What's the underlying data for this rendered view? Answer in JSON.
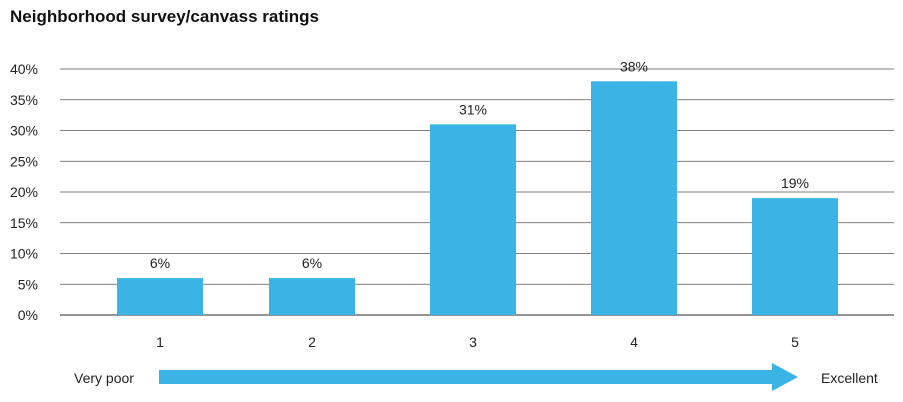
{
  "chart_data": {
    "type": "bar",
    "title": "Neighborhood survey/canvass ratings",
    "categories": [
      "1",
      "2",
      "3",
      "4",
      "5"
    ],
    "values": [
      6,
      6,
      31,
      38,
      19
    ],
    "value_labels": [
      "6%",
      "6%",
      "31%",
      "38%",
      "19%"
    ],
    "y_ticks": [
      "0%",
      "5%",
      "10%",
      "15%",
      "20%",
      "25%",
      "30%",
      "35%",
      "40%"
    ],
    "ylim": [
      0,
      40
    ],
    "grid": true,
    "xlabel": "",
    "ylabel": "",
    "bar_color": "#3ab4e5",
    "grid_color": "#555555"
  },
  "scale_arrow": {
    "left_label": "Very poor",
    "right_label": "Excellent",
    "color": "#3ab4e5"
  }
}
